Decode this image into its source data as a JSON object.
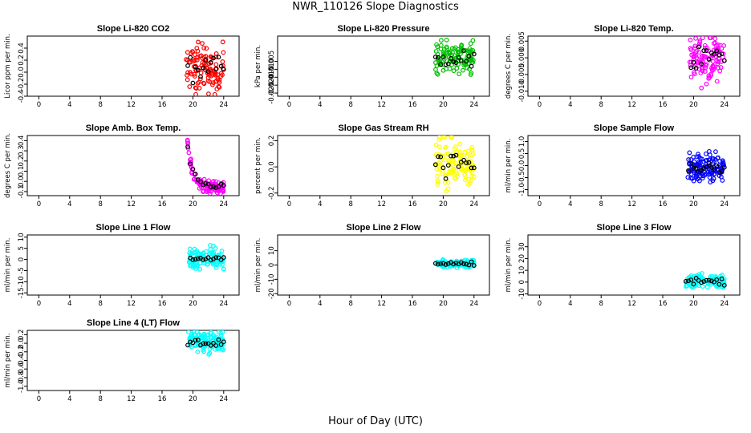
{
  "title": "NWR_110126  Slope Diagnostics",
  "xlabel": "Hour of Day (UTC)",
  "chart_data": [
    {
      "type": "scatter",
      "title": "Slope Li-820 CO2",
      "ylabel": "Licor ppm per min.",
      "color": "#ff0000",
      "xlim": [
        -1.5,
        26
      ],
      "ylim": [
        -0.4,
        0.6
      ],
      "xticks": [
        0,
        4,
        8,
        12,
        16,
        20,
        24
      ],
      "yticks": [
        -0.4,
        -0.2,
        0.0,
        0.2,
        0.4
      ],
      "ytick_labels": [
        "-0.4",
        "-0.2",
        "0.0",
        "0.2",
        "0.4"
      ],
      "x_start": 19.1,
      "x_end": 24.0,
      "n": 110,
      "center": 0.05,
      "spread": 0.2,
      "black_center": 0.05,
      "black_spread": 0.12
    },
    {
      "type": "scatter",
      "title": "Slope Li-820 Pressure",
      "ylabel": "kPa per min.",
      "color": "#00c000",
      "xlim": [
        -1.5,
        26
      ],
      "ylim": [
        -0.027,
        0.011
      ],
      "xticks": [
        0,
        4,
        8,
        12,
        16,
        20,
        24
      ],
      "yticks": [
        -0.025,
        -0.02,
        -0.015,
        -0.01,
        -0.005
      ],
      "ytick_labels": [
        "-0.025",
        "-0.020",
        "-0.015",
        "-0.010",
        "-0.005"
      ],
      "x_start": 19.0,
      "x_end": 24.0,
      "n": 110,
      "center": -0.002,
      "spread": 0.005,
      "black_center": -0.004,
      "black_spread": 0.003
    },
    {
      "type": "scatter",
      "title": "Slope Li-820 Temp.",
      "ylabel": "degrees C per min.",
      "color": "#ff00ff",
      "xlim": [
        -1.5,
        26
      ],
      "ylim": [
        -0.0115,
        0.0065
      ],
      "xticks": [
        0,
        4,
        8,
        12,
        16,
        20,
        24
      ],
      "yticks": [
        -0.01,
        -0.005,
        0.0,
        0.005
      ],
      "ytick_labels": [
        "-0.010",
        "-0.005",
        "0.000",
        "0.005"
      ],
      "x_start": 19.5,
      "x_end": 24.0,
      "n": 110,
      "center": 0.0,
      "spread": 0.0035,
      "black_center": 0.0,
      "black_spread": 0.002
    },
    {
      "type": "scatter",
      "title": "Slope Amb. Box Temp.",
      "ylabel": "degrees C per min.",
      "color": "#ff00ff",
      "xlim": [
        -1.5,
        26
      ],
      "ylim": [
        -0.14,
        0.45
      ],
      "xticks": [
        0,
        4,
        8,
        12,
        16,
        20,
        24
      ],
      "yticks": [
        -0.1,
        0.0,
        0.1,
        0.2,
        0.3,
        0.4
      ],
      "ytick_labels": [
        "-0.1",
        "0.0",
        "0.1",
        "0.2",
        "0.3",
        "0.4"
      ],
      "x_start": 19.3,
      "x_end": 24.0,
      "n": 120,
      "trend": "decay",
      "center": -0.06,
      "spread": 0.03,
      "black_center": -0.05,
      "black_spread": 0.02
    },
    {
      "type": "scatter",
      "title": "Slope Gas Stream RH",
      "ylabel": "percent per min.",
      "color": "#ffff00",
      "xlim": [
        -1.5,
        26
      ],
      "ylim": [
        -0.22,
        0.24
      ],
      "xticks": [
        0,
        4,
        8,
        12,
        16,
        20,
        24
      ],
      "yticks": [
        -0.2,
        0.0,
        0.2
      ],
      "ytick_labels": [
        "-0.2",
        "0.0",
        "0.2"
      ],
      "x_start": 19.0,
      "x_end": 24.0,
      "n": 120,
      "center": 0.02,
      "spread": 0.1,
      "black_center": 0.02,
      "black_spread": 0.06
    },
    {
      "type": "scatter",
      "title": "Slope Sample Flow",
      "ylabel": "ml/min per min.",
      "color": "#0000ff",
      "xlim": [
        -1.5,
        26
      ],
      "ylim": [
        -1.25,
        1.25
      ],
      "xticks": [
        0,
        4,
        8,
        12,
        16,
        20,
        24
      ],
      "yticks": [
        -1.0,
        -0.5,
        0.0,
        0.5,
        1.0
      ],
      "ytick_labels": [
        "-1.0",
        "-0.5",
        "0.0",
        "0.5",
        "1.0"
      ],
      "x_start": 19.2,
      "x_end": 24.0,
      "n": 120,
      "center": -0.1,
      "spread": 0.3,
      "black_center": -0.1,
      "black_spread": 0.15
    },
    {
      "type": "scatter",
      "title": "Slope Line 1 Flow",
      "ylabel": "ml/min per min.",
      "color": "#00ffff",
      "xlim": [
        -1.5,
        26
      ],
      "ylim": [
        -16,
        11
      ],
      "xticks": [
        0,
        4,
        8,
        12,
        16,
        20,
        24
      ],
      "yticks": [
        -15,
        -10,
        -5,
        0,
        5,
        10
      ],
      "ytick_labels": [
        "-15",
        "-10",
        "-5",
        "0",
        "5",
        "10"
      ],
      "x_start": 19.5,
      "x_end": 24.0,
      "n": 110,
      "center": 0.5,
      "spread": 2.0,
      "black_center": 0.5,
      "black_spread": 0.5
    },
    {
      "type": "scatter",
      "title": "Slope Line 2 Flow",
      "ylabel": "ml/min per min.",
      "color": "#00ffff",
      "xlim": [
        -1.5,
        26
      ],
      "ylim": [
        -21,
        21
      ],
      "xticks": [
        0,
        4,
        8,
        12,
        16,
        20,
        24
      ],
      "yticks": [
        -20,
        -10,
        0,
        10
      ],
      "ytick_labels": [
        "-20",
        "-10",
        "0",
        "10"
      ],
      "x_start": 19.0,
      "x_end": 24.0,
      "n": 110,
      "center": 1.0,
      "spread": 1.5,
      "black_center": 1.0,
      "black_spread": 0.8
    },
    {
      "type": "scatter",
      "title": "Slope Line 3 Flow",
      "ylabel": "ml/min per min.",
      "color": "#00ffff",
      "xlim": [
        -1.5,
        26
      ],
      "ylim": [
        -11,
        40
      ],
      "xticks": [
        0,
        4,
        8,
        12,
        16,
        20,
        24
      ],
      "yticks": [
        -10,
        0,
        10,
        20,
        30
      ],
      "ytick_labels": [
        "-10",
        "0",
        "10",
        "20",
        "30"
      ],
      "x_start": 19.0,
      "x_end": 24.0,
      "n": 110,
      "center": 1.0,
      "spread": 3.0,
      "black_center": 0.5,
      "black_spread": 1.5
    },
    {
      "type": "scatter",
      "title": "Slope Line 4 (LT) Flow",
      "ylabel": "ml/min per min.",
      "color": "#00ffff",
      "xlim": [
        -1.5,
        26
      ],
      "ylim": [
        -1.1,
        0.3
      ],
      "xticks": [
        0,
        4,
        8,
        12,
        16,
        20,
        24
      ],
      "yticks": [
        -1.0,
        -0.8,
        -0.6,
        -0.4,
        -0.2,
        0.0,
        0.2
      ],
      "ytick_labels": [
        "-1.0",
        "-0.8",
        "-0.6",
        "-0.4",
        "-0.2",
        "0.0",
        "0.2"
      ],
      "x_start": 19.3,
      "x_end": 24.0,
      "n": 110,
      "center": 0.05,
      "spread": 0.12,
      "black_center": 0.0,
      "black_spread": 0.06
    }
  ]
}
